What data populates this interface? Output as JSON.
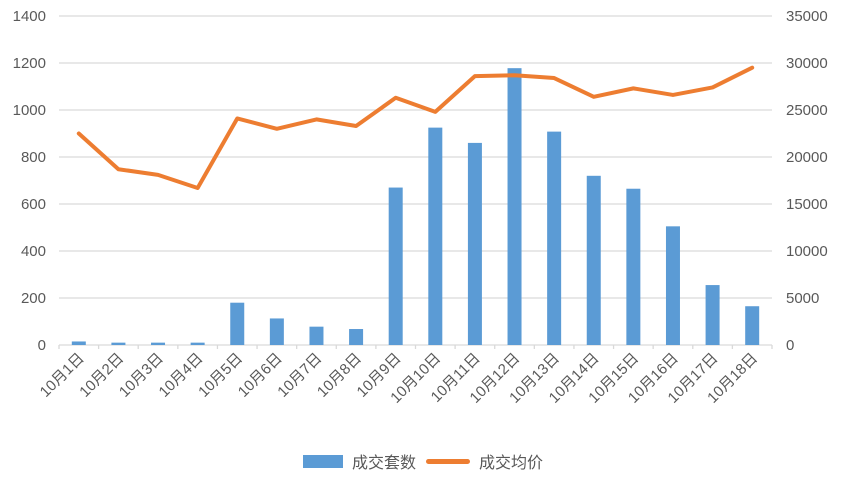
{
  "chart_data": {
    "type": "combo",
    "title": "",
    "categories": [
      "10月1日",
      "10月2日",
      "10月3日",
      "10月4日",
      "10月5日",
      "10月6日",
      "10月7日",
      "10月8日",
      "10月9日",
      "10月10日",
      "10月11日",
      "10月12日",
      "10月13日",
      "10月14日",
      "10月15日",
      "10月16日",
      "10月17日",
      "10月18日"
    ],
    "series": [
      {
        "name": "成交套数",
        "type": "bar",
        "axis": "left",
        "color": "#5B9BD5",
        "values": [
          15,
          10,
          10,
          10,
          180,
          113,
          78,
          68,
          670,
          925,
          860,
          1178,
          908,
          720,
          665,
          505,
          255,
          165
        ]
      },
      {
        "name": "成交均价",
        "type": "line",
        "axis": "right",
        "color": "#ED7D31",
        "values": [
          22500,
          18700,
          18100,
          16700,
          24100,
          23000,
          24000,
          23300,
          26300,
          24800,
          28600,
          28700,
          28400,
          26400,
          27300,
          26600,
          27400,
          29500
        ]
      }
    ],
    "left_axis": {
      "min": 0,
      "max": 1400,
      "ticks": [
        0,
        200,
        400,
        600,
        800,
        1000,
        1200,
        1400
      ]
    },
    "right_axis": {
      "min": 0,
      "max": 35000,
      "ticks": [
        0,
        5000,
        10000,
        15000,
        20000,
        25000,
        30000,
        35000
      ]
    },
    "grid": true,
    "legend_position": "bottom",
    "x_label_rotation_deg": 45,
    "colors": {
      "bar": "#5B9BD5",
      "line": "#ED7D31",
      "gridline": "#D9D9D9",
      "axis_text": "#595959",
      "background": "#FFFFFF"
    }
  },
  "legend": {
    "bar_label": "成交套数",
    "line_label": "成交均价"
  }
}
